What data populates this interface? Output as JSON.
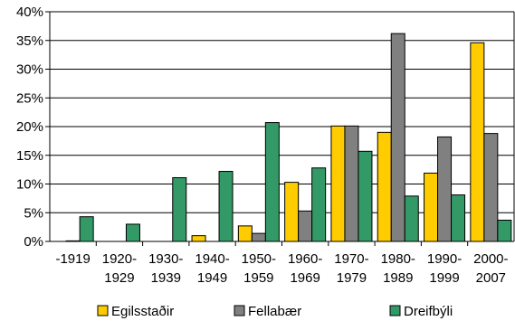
{
  "chart_data": {
    "type": "bar",
    "categories": [
      [
        "-1919"
      ],
      [
        "1920-",
        "1929"
      ],
      [
        "1930-",
        "1939"
      ],
      [
        "1940-",
        "1949"
      ],
      [
        "1950-",
        "1959"
      ],
      [
        "1960-",
        "1969"
      ],
      [
        "1970-",
        "1979"
      ],
      [
        "1980-",
        "1989"
      ],
      [
        "1990-",
        "1999"
      ],
      [
        "2000-",
        "2007"
      ]
    ],
    "series": [
      {
        "name": "Egilsstaðir",
        "color": "#ffcc00",
        "values": [
          0,
          0,
          0,
          1,
          2.7,
          10.3,
          20.1,
          19,
          11.9,
          34.6
        ]
      },
      {
        "name": "Fellabær",
        "color": "#808080",
        "values": [
          0.1,
          0,
          0,
          0,
          1.4,
          5.3,
          20.1,
          36.2,
          18.2,
          18.8
        ]
      },
      {
        "name": "Dreifbýli",
        "color": "#339966",
        "values": [
          4.3,
          3,
          11.1,
          12.2,
          20.7,
          12.8,
          15.7,
          7.9,
          8.1,
          3.7
        ]
      }
    ],
    "yticks": [
      "0%",
      "5%",
      "10%",
      "15%",
      "20%",
      "25%",
      "30%",
      "35%",
      "40%"
    ],
    "ylim": [
      0,
      40
    ],
    "grid": true,
    "legend_position": "bottom"
  }
}
